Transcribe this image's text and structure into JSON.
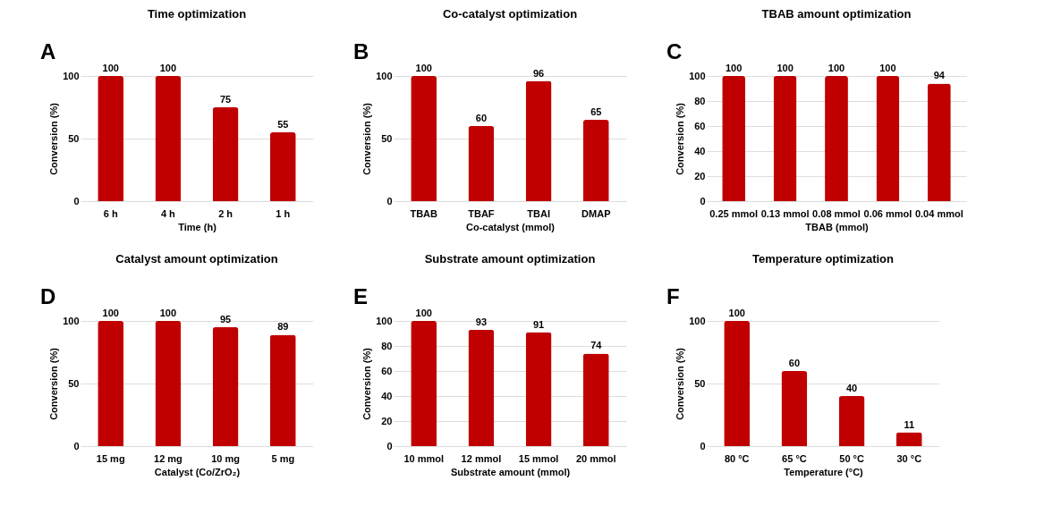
{
  "chart_data": [
    {
      "type": "bar",
      "title": "Time optimization",
      "annotations": [
        "A"
      ],
      "xlabel": "Time (h)",
      "ylabel": "Conversion (%)",
      "categories": [
        "6 h",
        "4 h",
        "2 h",
        "1 h"
      ],
      "values": [
        100,
        100,
        75,
        55
      ],
      "color": "#c00000",
      "ylim": [
        0,
        100
      ],
      "yticks": [
        0,
        50,
        100
      ],
      "grid": "y",
      "data_labels": true
    },
    {
      "type": "bar",
      "title": "Co-catalyst optimization",
      "annotations": [
        "B"
      ],
      "xlabel": "Co-catalyst (mmol)",
      "ylabel": "Conversion (%)",
      "categories": [
        "TBAB",
        "TBAF",
        "TBAI",
        "DMAP"
      ],
      "values": [
        100,
        60,
        96,
        65
      ],
      "color": "#c00000",
      "ylim": [
        0,
        100
      ],
      "yticks": [
        0,
        50,
        100
      ],
      "grid": "y",
      "data_labels": true
    },
    {
      "type": "bar",
      "title": "TBAB amount optimization",
      "annotations": [
        "C"
      ],
      "xlabel": "TBAB (mmol)",
      "ylabel": "Conversion (%)",
      "categories": [
        "0.25 mmol",
        "0.13 mmol",
        "0.08 mmol",
        "0.06 mmol",
        "0.04 mmol"
      ],
      "values": [
        100,
        100,
        100,
        100,
        94
      ],
      "color": "#c00000",
      "ylim": [
        0,
        100
      ],
      "yticks": [
        0,
        20,
        40,
        60,
        80,
        100
      ],
      "grid": "y",
      "data_labels": true
    },
    {
      "type": "bar",
      "title": "Catalyst amount optimization",
      "annotations": [
        "D"
      ],
      "xlabel": "Catalyst (Co/ZrO₂)",
      "ylabel": "Conversion (%)",
      "categories": [
        "15 mg",
        "12 mg",
        "10 mg",
        "5 mg"
      ],
      "values": [
        100,
        100,
        95,
        89
      ],
      "color": "#c00000",
      "ylim": [
        0,
        100
      ],
      "yticks": [
        0,
        50,
        100
      ],
      "grid": "y",
      "data_labels": true
    },
    {
      "type": "bar",
      "title": "Substrate amount optimization",
      "annotations": [
        "E"
      ],
      "xlabel": "Substrate amount (mmol)",
      "ylabel": "Conversion (%)",
      "categories": [
        "10 mmol",
        "12 mmol",
        "15 mmol",
        "20 mmol"
      ],
      "values": [
        100,
        93,
        91,
        74
      ],
      "color": "#c00000",
      "ylim": [
        0,
        100
      ],
      "yticks": [
        0,
        20,
        40,
        60,
        80,
        100
      ],
      "grid": "y",
      "data_labels": true
    },
    {
      "type": "bar",
      "title": "Temperature optimization",
      "annotations": [
        "F"
      ],
      "xlabel": "Temperature (°C)",
      "ylabel": "Conversion (%)",
      "categories": [
        "80 °C",
        "65 °C",
        "50 °C",
        "30 °C"
      ],
      "values": [
        100,
        60,
        40,
        11
      ],
      "color": "#c00000",
      "ylim": [
        0,
        100
      ],
      "yticks": [
        0,
        50,
        100
      ],
      "grid": "y",
      "data_labels": true
    }
  ]
}
